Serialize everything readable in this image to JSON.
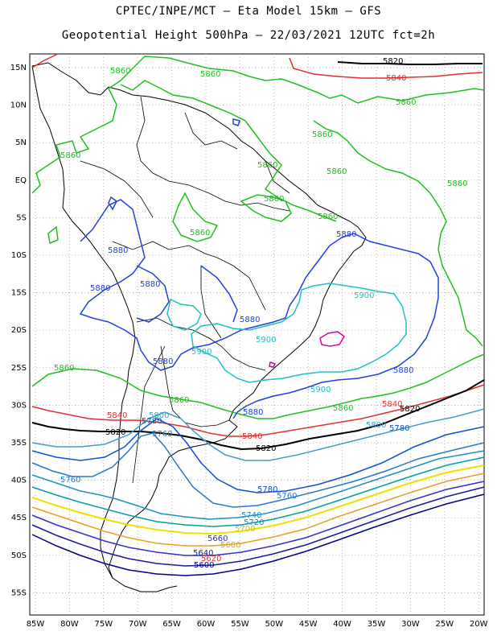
{
  "title": {
    "line1": "CPTEC/INPE/MCT –  Eta Model 15km – GFS",
    "line2": "Geopotential Height 500hPa – 22/03/2021 12UTC fct=2h"
  },
  "map": {
    "lat_labels": [
      "15N",
      "10N",
      "5N",
      "EQ",
      "5S",
      "10S",
      "15S",
      "20S",
      "25S",
      "30S",
      "35S",
      "40S",
      "45S",
      "50S",
      "55S"
    ],
    "lon_labels": [
      "85W",
      "80W",
      "75W",
      "70W",
      "65W",
      "60W",
      "55W",
      "50W",
      "45W",
      "40W",
      "35W",
      "30W",
      "25W",
      "20W"
    ],
    "contour_colors": {
      "5620": "#000080",
      "5640": "#1a1a9a",
      "5660": "#3232c8",
      "5680": "#e8a020",
      "5700": "#f0e000",
      "5720": "#00a0a0",
      "5740": "#2090c0",
      "5760": "#2878c8",
      "5780": "#1050d0",
      "5800": "#40a0c0",
      "5820": "#000000",
      "5840": "#e03030",
      "5860": "#20c020",
      "5880": "#2040e0",
      "5900": "#20c0c0",
      "5920": "#e000a0"
    },
    "contour_labels": {
      "l5820_n": "5820",
      "l5840_n": "5840",
      "l5860_a": "5860",
      "l5860_b": "5860",
      "l5860_c": "5860",
      "l5860_d": "5860",
      "l5860_e": "5860",
      "l5860_f": "5860",
      "l5860_g": "5860",
      "l5860_h": "5860",
      "l5860_i": "5860",
      "l5860_j": "5860",
      "l5860_k": "5860",
      "l5860_s1": "5860",
      "l5860_s2": "5860",
      "l5860_s3": "5860",
      "l5880_a": "5880",
      "l5880_b": "5880",
      "l5880_c": "5880",
      "l5880_d": "5880",
      "l5880_e": "5880",
      "l5880_f": "5880",
      "l5880_g": "5880",
      "l5880_h": "5880",
      "l5900_a": "5900",
      "l5900_b": "5900",
      "l5900_c": "5900",
      "l5900_d": "5900",
      "l5840_s1": "5840",
      "l5840_s2": "5840",
      "l5840_s3": "5840",
      "l5820_s1": "5820",
      "l5820_s2": "5820",
      "l5820_s3": "5820",
      "l5800_a": "5800",
      "l5800_b": "5800",
      "l5780_a": "5780",
      "l5780_b": "5780",
      "l5760_a": "5760",
      "l5760_b": "5760",
      "l5760_c": "5760",
      "l5740": "5740",
      "l5720": "5720",
      "l5700": "5700",
      "l5680": "5680",
      "l5660": "5660",
      "l5640": "5640",
      "l5620": "5620",
      "l5600": "5600"
    }
  }
}
